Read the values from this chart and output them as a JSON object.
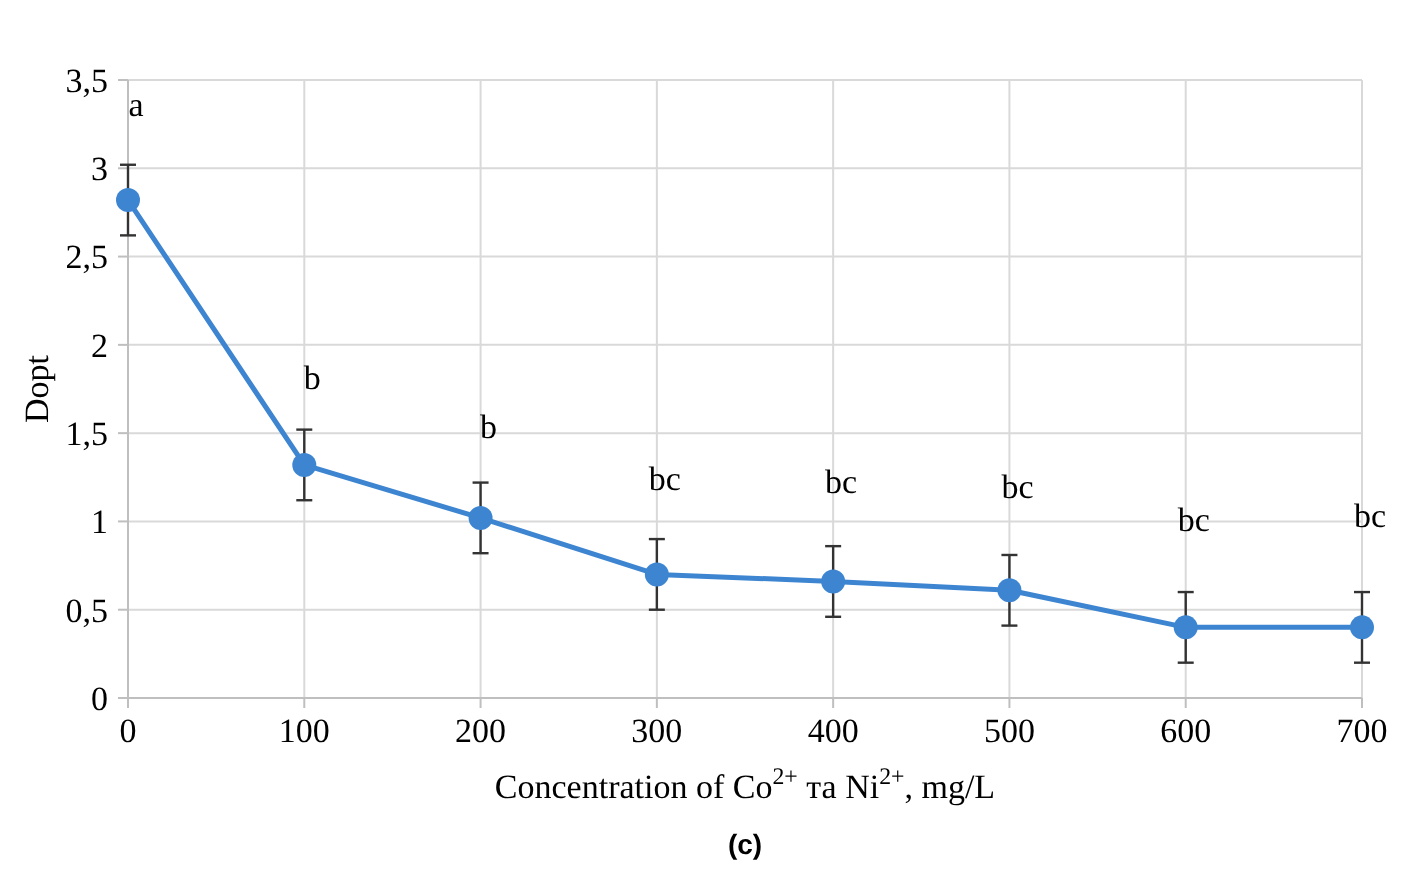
{
  "chart_data": {
    "type": "line",
    "xlabel": "Concentration of Co$^{2+}$ та Ni$^{2+}$, mg/L",
    "ylabel": "Dopt",
    "x": [
      0,
      100,
      200,
      300,
      400,
      500,
      600,
      700
    ],
    "series": [
      {
        "color": "#3d85d1",
        "values": [
          2.82,
          1.32,
          1.02,
          0.7,
          0.66,
          0.61,
          0.4,
          0.4
        ],
        "errors": [
          0.2,
          0.2,
          0.2,
          0.2,
          0.2,
          0.2,
          0.2,
          0.2
        ]
      }
    ],
    "xlim": [
      0,
      700
    ],
    "xticks": [
      0,
      100,
      200,
      300,
      400,
      500,
      600,
      700
    ],
    "ylim": [
      0,
      3.5
    ],
    "yticks": [
      {
        "value": 0,
        "label": "0"
      },
      {
        "value": 0.5,
        "label": "0,5"
      },
      {
        "value": 1,
        "label": "1"
      },
      {
        "value": 1.5,
        "label": "1,5"
      },
      {
        "value": 2,
        "label": "2"
      },
      {
        "value": 2.5,
        "label": "2,5"
      },
      {
        "value": 3,
        "label": "3"
      },
      {
        "value": 3.5,
        "label": "3,5"
      }
    ],
    "grid": true,
    "marker": "circle",
    "line_style": "solid",
    "annotations": [
      {
        "text": "a",
        "x": 0,
        "y": 2.82
      },
      {
        "text": "b",
        "x": 100,
        "y": 1.32
      },
      {
        "text": "b",
        "x": 200,
        "y": 1.02
      },
      {
        "text": "bc",
        "x": 300,
        "y": 0.7
      },
      {
        "text": "bc",
        "x": 400,
        "y": 0.66
      },
      {
        "text": "bc",
        "x": 500,
        "y": 0.61
      },
      {
        "text": "bc",
        "x": 600,
        "y": 0.4
      },
      {
        "text": "bc",
        "x": 700,
        "y": 0.4
      },
      "(c)"
    ]
  }
}
